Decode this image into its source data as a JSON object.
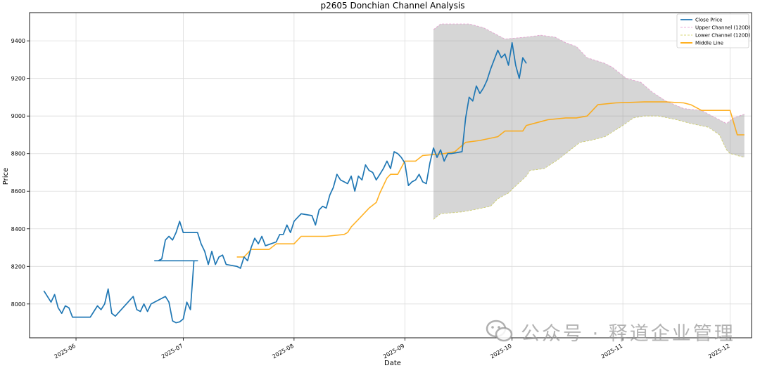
{
  "chart_data": {
    "type": "line",
    "title": "p2605 Donchian Channel Analysis",
    "xlabel": "Date",
    "ylabel": "Price",
    "xlim": [
      "2025-05-19",
      "2025-12-07"
    ],
    "ylim": [
      7820,
      9550
    ],
    "grid": true,
    "legend_position": "top-right",
    "x_ticks": [
      "2025-06-01",
      "2025-07-01",
      "2025-08-01",
      "2025-09-01",
      "2025-10-01",
      "2025-11-01",
      "2025-12-01"
    ],
    "x_tick_labels": [
      "2025-06",
      "2025-07",
      "2025-08",
      "2025-09",
      "2025-10",
      "2025-11",
      "2025-12"
    ],
    "y_ticks": [
      8000,
      8200,
      8400,
      8600,
      8800,
      9000,
      9200,
      9400
    ],
    "y_tick_labels": [
      "8000",
      "8200",
      "8400",
      "8600",
      "8800",
      "9000",
      "9200",
      "9400"
    ],
    "series": [
      {
        "name": "Close Price",
        "color": "#1f77b4",
        "style": "solid",
        "points": [
          [
            "2025-05-23",
            8070
          ],
          [
            "2025-05-24",
            8040
          ],
          [
            "2025-05-25",
            8010
          ],
          [
            "2025-05-26",
            8050
          ],
          [
            "2025-05-27",
            7980
          ],
          [
            "2025-05-28",
            7950
          ],
          [
            "2025-05-29",
            7990
          ],
          [
            "2025-05-30",
            7980
          ],
          [
            "2025-05-31",
            7930
          ],
          [
            "2025-06-05",
            7930
          ],
          [
            "2025-06-06",
            7960
          ],
          [
            "2025-06-07",
            7990
          ],
          [
            "2025-06-08",
            7970
          ],
          [
            "2025-06-09",
            8000
          ],
          [
            "2025-06-10",
            8080
          ],
          [
            "2025-06-11",
            7950
          ],
          [
            "2025-06-12",
            7935
          ],
          [
            "2025-06-17",
            8040
          ],
          [
            "2025-06-18",
            7970
          ],
          [
            "2025-06-19",
            7960
          ],
          [
            "2025-06-20",
            8000
          ],
          [
            "2025-06-21",
            7960
          ],
          [
            "2025-06-22",
            8000
          ],
          [
            "2025-06-26",
            8040
          ],
          [
            "2025-06-27",
            8010
          ],
          [
            "2025-06-28",
            7910
          ],
          [
            "2025-06-29",
            7900
          ],
          [
            "2025-06-30",
            7905
          ],
          [
            "2025-07-01",
            7920
          ],
          [
            "2025-07-02",
            8010
          ],
          [
            "2025-07-03",
            7970
          ],
          [
            "2025-07-04",
            8230
          ],
          [
            "2025-07-05",
            8230
          ],
          [
            "2025-06-23",
            8230
          ],
          [
            "2025-06-24",
            8230
          ],
          [
            "2025-06-25",
            8240
          ],
          [
            "2025-06-26",
            8340
          ],
          [
            "2025-06-27",
            8360
          ],
          [
            "2025-06-28",
            8340
          ],
          [
            "2025-06-29",
            8380
          ],
          [
            "2025-06-30",
            8440
          ],
          [
            "2025-07-01",
            8380
          ],
          [
            "2025-07-05",
            8380
          ],
          [
            "2025-07-06",
            8320
          ],
          [
            "2025-07-07",
            8280
          ],
          [
            "2025-07-08",
            8210
          ],
          [
            "2025-07-09",
            8280
          ],
          [
            "2025-07-10",
            8210
          ],
          [
            "2025-07-11",
            8250
          ],
          [
            "2025-07-12",
            8260
          ],
          [
            "2025-07-13",
            8210
          ],
          [
            "2025-07-16",
            8200
          ],
          [
            "2025-07-17",
            8190
          ],
          [
            "2025-07-18",
            8250
          ],
          [
            "2025-07-19",
            8230
          ],
          [
            "2025-07-20",
            8300
          ],
          [
            "2025-07-21",
            8350
          ],
          [
            "2025-07-22",
            8320
          ],
          [
            "2025-07-23",
            8360
          ],
          [
            "2025-07-24",
            8310
          ],
          [
            "2025-07-27",
            8330
          ],
          [
            "2025-07-28",
            8370
          ],
          [
            "2025-07-29",
            8370
          ],
          [
            "2025-07-30",
            8420
          ],
          [
            "2025-07-31",
            8380
          ],
          [
            "2025-08-01",
            8440
          ],
          [
            "2025-08-02",
            8460
          ],
          [
            "2025-08-03",
            8480
          ],
          [
            "2025-08-06",
            8470
          ],
          [
            "2025-08-07",
            8420
          ],
          [
            "2025-08-08",
            8500
          ],
          [
            "2025-08-09",
            8520
          ],
          [
            "2025-08-10",
            8510
          ],
          [
            "2025-08-11",
            8580
          ],
          [
            "2025-08-12",
            8620
          ],
          [
            "2025-08-13",
            8690
          ],
          [
            "2025-08-14",
            8660
          ],
          [
            "2025-08-15",
            8650
          ],
          [
            "2025-08-16",
            8640
          ],
          [
            "2025-08-17",
            8680
          ],
          [
            "2025-08-18",
            8600
          ],
          [
            "2025-08-19",
            8680
          ],
          [
            "2025-08-20",
            8660
          ],
          [
            "2025-08-21",
            8740
          ],
          [
            "2025-08-22",
            8710
          ],
          [
            "2025-08-23",
            8700
          ],
          [
            "2025-08-24",
            8660
          ],
          [
            "2025-08-25",
            8690
          ],
          [
            "2025-08-26",
            8720
          ],
          [
            "2025-08-27",
            8760
          ],
          [
            "2025-08-28",
            8720
          ],
          [
            "2025-08-29",
            8810
          ],
          [
            "2025-08-30",
            8800
          ],
          [
            "2025-08-31",
            8780
          ],
          [
            "2025-09-01",
            8750
          ],
          [
            "2025-09-02",
            8630
          ],
          [
            "2025-09-03",
            8650
          ],
          [
            "2025-09-04",
            8660
          ],
          [
            "2025-09-05",
            8690
          ],
          [
            "2025-09-06",
            8650
          ],
          [
            "2025-09-07",
            8640
          ],
          [
            "2025-09-08",
            8750
          ],
          [
            "2025-09-09",
            8830
          ],
          [
            "2025-09-10",
            8780
          ],
          [
            "2025-09-11",
            8820
          ],
          [
            "2025-09-12",
            8760
          ],
          [
            "2025-09-13",
            8800
          ],
          [
            "2025-09-14",
            8800
          ],
          [
            "2025-09-17",
            8810
          ],
          [
            "2025-09-18",
            8990
          ],
          [
            "2025-09-19",
            9100
          ],
          [
            "2025-09-20",
            9080
          ],
          [
            "2025-09-21",
            9160
          ],
          [
            "2025-09-22",
            9120
          ],
          [
            "2025-09-23",
            9150
          ],
          [
            "2025-09-24",
            9190
          ],
          [
            "2025-09-25",
            9250
          ],
          [
            "2025-09-26",
            9300
          ],
          [
            "2025-09-27",
            9350
          ],
          [
            "2025-09-28",
            9310
          ],
          [
            "2025-09-29",
            9330
          ],
          [
            "2025-09-30",
            9270
          ],
          [
            "2025-10-01",
            9390
          ],
          [
            "2025-10-02",
            9270
          ],
          [
            "2025-10-03",
            9200
          ],
          [
            "2025-10-04",
            9310
          ],
          [
            "2025-10-05",
            9280
          ]
        ]
      },
      {
        "name": "Upper Channel (120D)",
        "color": "#e377c2",
        "style": "dashed",
        "points": [
          [
            "2025-09-09",
            9460
          ],
          [
            "2025-09-11",
            9490
          ],
          [
            "2025-09-19",
            9490
          ],
          [
            "2025-09-23",
            9470
          ],
          [
            "2025-09-29",
            9410
          ],
          [
            "2025-10-05",
            9420
          ],
          [
            "2025-10-09",
            9430
          ],
          [
            "2025-10-13",
            9420
          ],
          [
            "2025-10-16",
            9390
          ],
          [
            "2025-10-19",
            9370
          ],
          [
            "2025-10-22",
            9310
          ],
          [
            "2025-10-27",
            9280
          ],
          [
            "2025-10-29",
            9260
          ],
          [
            "2025-11-02",
            9200
          ],
          [
            "2025-11-06",
            9180
          ],
          [
            "2025-11-09",
            9130
          ],
          [
            "2025-11-13",
            9080
          ],
          [
            "2025-11-18",
            9040
          ],
          [
            "2025-11-23",
            9030
          ],
          [
            "2025-11-26",
            9000
          ],
          [
            "2025-11-30",
            8960
          ],
          [
            "2025-12-02",
            8990
          ],
          [
            "2025-12-05",
            9010
          ]
        ]
      },
      {
        "name": "Lower Channel (120D)",
        "color": "#bcbd22",
        "style": "dashed",
        "points": [
          [
            "2025-09-09",
            8450
          ],
          [
            "2025-09-11",
            8480
          ],
          [
            "2025-09-17",
            8490
          ],
          [
            "2025-09-20",
            8500
          ],
          [
            "2025-09-25",
            8520
          ],
          [
            "2025-09-27",
            8560
          ],
          [
            "2025-09-30",
            8590
          ],
          [
            "2025-10-01",
            8610
          ],
          [
            "2025-10-05",
            8680
          ],
          [
            "2025-10-06",
            8710
          ],
          [
            "2025-10-10",
            8720
          ],
          [
            "2025-10-14",
            8770
          ],
          [
            "2025-10-20",
            8860
          ],
          [
            "2025-10-23",
            8870
          ],
          [
            "2025-10-27",
            8890
          ],
          [
            "2025-11-01",
            8950
          ],
          [
            "2025-11-04",
            8990
          ],
          [
            "2025-11-07",
            9000
          ],
          [
            "2025-11-11",
            9000
          ],
          [
            "2025-11-16",
            8980
          ],
          [
            "2025-11-20",
            8960
          ],
          [
            "2025-11-25",
            8940
          ],
          [
            "2025-11-28",
            8900
          ],
          [
            "2025-11-30",
            8820
          ],
          [
            "2025-12-01",
            8800
          ],
          [
            "2025-12-03",
            8790
          ],
          [
            "2025-12-05",
            8780
          ]
        ]
      },
      {
        "name": "Middle Line",
        "color": "#ffa500",
        "style": "solid",
        "points": [
          [
            "2025-07-16",
            8250
          ],
          [
            "2025-07-18",
            8250
          ],
          [
            "2025-07-20",
            8290
          ],
          [
            "2025-07-25",
            8290
          ],
          [
            "2025-07-27",
            8320
          ],
          [
            "2025-08-01",
            8320
          ],
          [
            "2025-08-03",
            8360
          ],
          [
            "2025-08-10",
            8360
          ],
          [
            "2025-08-15",
            8370
          ],
          [
            "2025-08-16",
            8380
          ],
          [
            "2025-08-17",
            8410
          ],
          [
            "2025-08-19",
            8450
          ],
          [
            "2025-08-22",
            8510
          ],
          [
            "2025-08-24",
            8540
          ],
          [
            "2025-08-25",
            8590
          ],
          [
            "2025-08-27",
            8670
          ],
          [
            "2025-08-28",
            8690
          ],
          [
            "2025-08-30",
            8690
          ],
          [
            "2025-09-01",
            8760
          ],
          [
            "2025-09-04",
            8760
          ],
          [
            "2025-09-06",
            8790
          ],
          [
            "2025-09-12",
            8800
          ],
          [
            "2025-09-15",
            8810
          ],
          [
            "2025-09-18",
            8860
          ],
          [
            "2025-09-22",
            8870
          ],
          [
            "2025-09-27",
            8890
          ],
          [
            "2025-09-29",
            8920
          ],
          [
            "2025-10-04",
            8920
          ],
          [
            "2025-10-05",
            8950
          ],
          [
            "2025-10-11",
            8980
          ],
          [
            "2025-10-16",
            8990
          ],
          [
            "2025-10-19",
            8990
          ],
          [
            "2025-10-22",
            9000
          ],
          [
            "2025-10-25",
            9060
          ],
          [
            "2025-10-30",
            9070
          ],
          [
            "2025-11-07",
            9075
          ],
          [
            "2025-11-13",
            9075
          ],
          [
            "2025-11-18",
            9070
          ],
          [
            "2025-11-20",
            9060
          ],
          [
            "2025-11-23",
            9030
          ],
          [
            "2025-11-25",
            9030
          ],
          [
            "2025-11-28",
            9030
          ],
          [
            "2025-12-01",
            9030
          ],
          [
            "2025-12-03",
            8900
          ],
          [
            "2025-12-05",
            8900
          ]
        ]
      }
    ]
  },
  "watermark": {
    "text": "公众号 · 释道企业管理",
    "icon": "wechat-icon"
  }
}
